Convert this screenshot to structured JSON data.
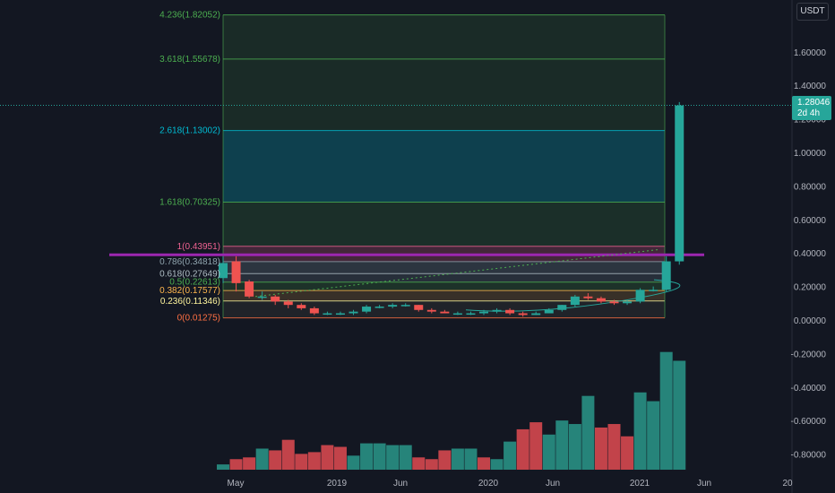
{
  "currency": "USDT",
  "last_price": "1.28046",
  "countdown": "2d 4h",
  "colors": {
    "bg": "#131722",
    "up": "#26a69a",
    "down": "#ef5350",
    "vol_up": "#26847a",
    "vol_down": "#c2434a",
    "trendline": "#9c27b0"
  },
  "price_axis": [
    "1.60000",
    "1.40000",
    "1.20000",
    "1.00000",
    "0.80000",
    "0.60000",
    "0.40000",
    "0.20000",
    "0.00000",
    "-0.20000",
    "-0.40000",
    "-0.60000",
    "-0.80000"
  ],
  "time_axis": [
    "May",
    "2019",
    "Jun",
    "2020",
    "Jun",
    "2021",
    "Jun",
    "20"
  ],
  "fib_levels": [
    {
      "ratio": "4.236",
      "price": "1.82052",
      "label": "4.236(1.82052)",
      "color": "#4caf50"
    },
    {
      "ratio": "3.618",
      "price": "1.55678",
      "label": "3.618(1.55678)",
      "color": "#4caf50"
    },
    {
      "ratio": "2.618",
      "price": "1.13002",
      "label": "2.618(1.13002)",
      "color": "#00bcd4"
    },
    {
      "ratio": "1.618",
      "price": "0.70325",
      "label": "1.618(0.70325)",
      "color": "#4caf50"
    },
    {
      "ratio": "1",
      "price": "0.43951",
      "label": "1(0.43951)",
      "color": "#f06292"
    },
    {
      "ratio": "0.786",
      "price": "0.34818",
      "label": "0.786(0.34818)",
      "color": "#90a4ae"
    },
    {
      "ratio": "0.618",
      "price": "0.27649",
      "label": "0.618(0.27649)",
      "color": "#b0bec5"
    },
    {
      "ratio": "0.5",
      "price": "0.22613",
      "label": "0.5(0.22613)",
      "color": "#4caf50"
    },
    {
      "ratio": "0.382",
      "price": "0.17577",
      "label": "0.382(0.17577)",
      "color": "#ffb74d"
    },
    {
      "ratio": "0.236",
      "price": "0.11346",
      "label": "0.236(0.11346)",
      "color": "#fff59d"
    },
    {
      "ratio": "0",
      "price": "0.01275",
      "label": "0(0.01275)",
      "color": "#ff7043"
    }
  ],
  "chart_data": {
    "type": "candlestick",
    "y_range": [
      -0.86,
      1.84
    ],
    "candles": [
      {
        "o": 0.25,
        "h": 0.38,
        "l": 0.22,
        "c": 0.34
      },
      {
        "o": 0.35,
        "h": 0.38,
        "l": 0.17,
        "c": 0.22
      },
      {
        "o": 0.23,
        "h": 0.24,
        "l": 0.13,
        "c": 0.14
      },
      {
        "o": 0.14,
        "h": 0.17,
        "l": 0.12,
        "c": 0.14
      },
      {
        "o": 0.14,
        "h": 0.15,
        "l": 0.09,
        "c": 0.11
      },
      {
        "o": 0.11,
        "h": 0.12,
        "l": 0.07,
        "c": 0.09
      },
      {
        "o": 0.09,
        "h": 0.1,
        "l": 0.06,
        "c": 0.07
      },
      {
        "o": 0.07,
        "h": 0.08,
        "l": 0.03,
        "c": 0.04
      },
      {
        "o": 0.04,
        "h": 0.05,
        "l": 0.03,
        "c": 0.04
      },
      {
        "o": 0.04,
        "h": 0.05,
        "l": 0.03,
        "c": 0.04
      },
      {
        "o": 0.04,
        "h": 0.06,
        "l": 0.03,
        "c": 0.05
      },
      {
        "o": 0.05,
        "h": 0.09,
        "l": 0.04,
        "c": 0.08
      },
      {
        "o": 0.08,
        "h": 0.09,
        "l": 0.07,
        "c": 0.08
      },
      {
        "o": 0.08,
        "h": 0.1,
        "l": 0.07,
        "c": 0.09
      },
      {
        "o": 0.09,
        "h": 0.1,
        "l": 0.08,
        "c": 0.09
      },
      {
        "o": 0.09,
        "h": 0.09,
        "l": 0.05,
        "c": 0.06
      },
      {
        "o": 0.06,
        "h": 0.07,
        "l": 0.04,
        "c": 0.05
      },
      {
        "o": 0.05,
        "h": 0.06,
        "l": 0.04,
        "c": 0.04
      },
      {
        "o": 0.04,
        "h": 0.05,
        "l": 0.03,
        "c": 0.04
      },
      {
        "o": 0.04,
        "h": 0.05,
        "l": 0.03,
        "c": 0.04
      },
      {
        "o": 0.04,
        "h": 0.06,
        "l": 0.03,
        "c": 0.05
      },
      {
        "o": 0.05,
        "h": 0.07,
        "l": 0.04,
        "c": 0.06
      },
      {
        "o": 0.06,
        "h": 0.07,
        "l": 0.03,
        "c": 0.04
      },
      {
        "o": 0.04,
        "h": 0.05,
        "l": 0.02,
        "c": 0.03
      },
      {
        "o": 0.03,
        "h": 0.05,
        "l": 0.03,
        "c": 0.04
      },
      {
        "o": 0.04,
        "h": 0.07,
        "l": 0.04,
        "c": 0.06
      },
      {
        "o": 0.06,
        "h": 0.09,
        "l": 0.05,
        "c": 0.09
      },
      {
        "o": 0.09,
        "h": 0.15,
        "l": 0.08,
        "c": 0.14
      },
      {
        "o": 0.14,
        "h": 0.16,
        "l": 0.12,
        "c": 0.13
      },
      {
        "o": 0.13,
        "h": 0.14,
        "l": 0.1,
        "c": 0.11
      },
      {
        "o": 0.11,
        "h": 0.12,
        "l": 0.09,
        "c": 0.1
      },
      {
        "o": 0.1,
        "h": 0.12,
        "l": 0.09,
        "c": 0.11
      },
      {
        "o": 0.11,
        "h": 0.19,
        "l": 0.1,
        "c": 0.18
      },
      {
        "o": 0.18,
        "h": 0.2,
        "l": 0.17,
        "c": 0.18
      },
      {
        "o": 0.18,
        "h": 0.38,
        "l": 0.17,
        "c": 0.35
      },
      {
        "o": 0.35,
        "h": 1.3,
        "l": 0.33,
        "c": 1.28
      }
    ],
    "volume_bars": [
      {
        "v": 0.03,
        "d": "up"
      },
      {
        "v": 0.06,
        "d": "down"
      },
      {
        "v": 0.07,
        "d": "down"
      },
      {
        "v": 0.12,
        "d": "up"
      },
      {
        "v": 0.11,
        "d": "down"
      },
      {
        "v": 0.17,
        "d": "down"
      },
      {
        "v": 0.09,
        "d": "down"
      },
      {
        "v": 0.1,
        "d": "down"
      },
      {
        "v": 0.14,
        "d": "down"
      },
      {
        "v": 0.13,
        "d": "down"
      },
      {
        "v": 0.08,
        "d": "up"
      },
      {
        "v": 0.15,
        "d": "up"
      },
      {
        "v": 0.15,
        "d": "up"
      },
      {
        "v": 0.14,
        "d": "up"
      },
      {
        "v": 0.14,
        "d": "up"
      },
      {
        "v": 0.07,
        "d": "down"
      },
      {
        "v": 0.06,
        "d": "down"
      },
      {
        "v": 0.11,
        "d": "down"
      },
      {
        "v": 0.12,
        "d": "up"
      },
      {
        "v": 0.12,
        "d": "up"
      },
      {
        "v": 0.07,
        "d": "down"
      },
      {
        "v": 0.06,
        "d": "up"
      },
      {
        "v": 0.16,
        "d": "up"
      },
      {
        "v": 0.23,
        "d": "down"
      },
      {
        "v": 0.27,
        "d": "down"
      },
      {
        "v": 0.2,
        "d": "up"
      },
      {
        "v": 0.28,
        "d": "up"
      },
      {
        "v": 0.26,
        "d": "up"
      },
      {
        "v": 0.42,
        "d": "up"
      },
      {
        "v": 0.24,
        "d": "down"
      },
      {
        "v": 0.26,
        "d": "down"
      },
      {
        "v": 0.19,
        "d": "down"
      },
      {
        "v": 0.44,
        "d": "up"
      },
      {
        "v": 0.39,
        "d": "up"
      },
      {
        "v": 0.67,
        "d": "up"
      },
      {
        "v": 0.62,
        "d": "up"
      }
    ]
  }
}
